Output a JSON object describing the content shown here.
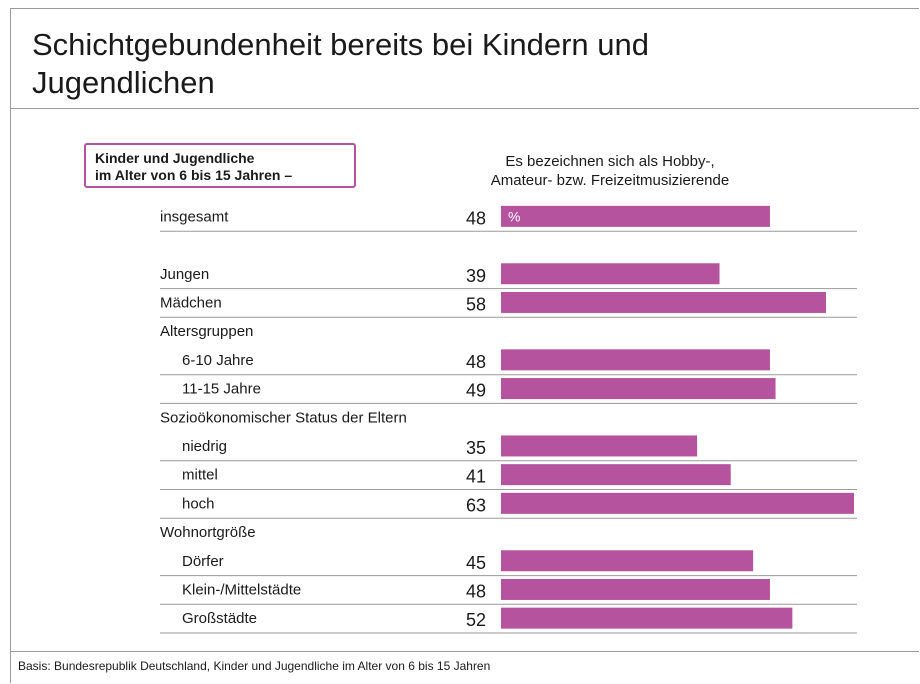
{
  "title": "Schichtgebundenheit bereits bei Kindern und Jugendlichen",
  "label_box": {
    "line1": "Kinder und Jugendliche",
    "line2": "im Alter von 6 bis 15 Jahren –"
  },
  "column_header": {
    "line1": "Es bezeichnen sich als Hobby-,",
    "line2": "Amateur- bzw.  Freizeitmusizierende"
  },
  "footnote": "Basis: Bundesrepublik Deutschland, Kinder und Jugendliche im Alter von 6 bis 15 Jahren",
  "colors": {
    "bar": "#b5539f",
    "rule": "#9a9a9a",
    "text": "#1a1a1a"
  },
  "chart_data": {
    "type": "bar",
    "orientation": "horizontal",
    "unit": "%",
    "xlim": [
      0,
      63
    ],
    "rows": [
      {
        "kind": "bar",
        "label": "insgesamt",
        "value": 48,
        "unit_label": "%",
        "indent": false
      },
      {
        "kind": "spacer"
      },
      {
        "kind": "bar",
        "label": "Jungen",
        "value": 39,
        "indent": false
      },
      {
        "kind": "bar",
        "label": "Mädchen",
        "value": 58,
        "indent": false
      },
      {
        "kind": "header",
        "label": "Altersgruppen"
      },
      {
        "kind": "bar",
        "label": "6-10 Jahre",
        "value": 48,
        "indent": true
      },
      {
        "kind": "bar",
        "label": "11-15 Jahre",
        "value": 49,
        "indent": true
      },
      {
        "kind": "header",
        "label": "Sozioökonomischer Status der Eltern"
      },
      {
        "kind": "bar",
        "label": "niedrig",
        "value": 35,
        "indent": true
      },
      {
        "kind": "bar",
        "label": "mittel",
        "value": 41,
        "indent": true
      },
      {
        "kind": "bar",
        "label": "hoch",
        "value": 63,
        "indent": true
      },
      {
        "kind": "header",
        "label": "Wohnortgröße"
      },
      {
        "kind": "bar",
        "label": "Dörfer",
        "value": 45,
        "indent": true
      },
      {
        "kind": "bar",
        "label": "Klein-/Mittelstädte",
        "value": 48,
        "indent": true
      },
      {
        "kind": "bar",
        "label": "Großstädte",
        "value": 52,
        "indent": true
      }
    ]
  }
}
